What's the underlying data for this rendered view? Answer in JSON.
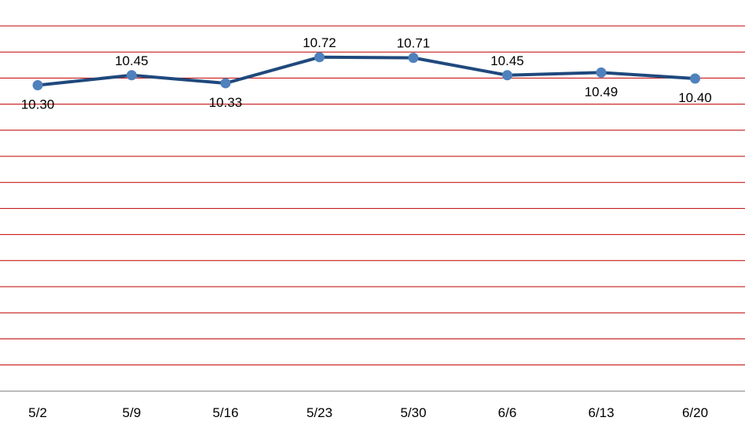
{
  "chart_data": {
    "type": "line",
    "title": "",
    "xlabel": "",
    "ylabel": "",
    "categories": [
      "5/2",
      "5/9",
      "5/16",
      "5/23",
      "5/30",
      "6/6",
      "6/13",
      "6/20"
    ],
    "series": [
      {
        "values": [
          10.3,
          10.45,
          10.33,
          10.72,
          10.71,
          10.45,
          10.49,
          10.4
        ],
        "labels": [
          "10.30",
          "10.45",
          "10.33",
          "10.72",
          "10.71",
          "10.45",
          "10.49",
          "10.40"
        ],
        "label_positions": [
          "below",
          "above",
          "below",
          "above",
          "above",
          "above",
          "below",
          "below"
        ]
      }
    ],
    "ylim": [
      6.7,
      11.05
    ],
    "grid": true,
    "legend": "none",
    "colors": {
      "line": "#1f497d",
      "marker": "#4f81bd",
      "gridline": "#c00000",
      "axis": "#a6a6a6"
    }
  }
}
